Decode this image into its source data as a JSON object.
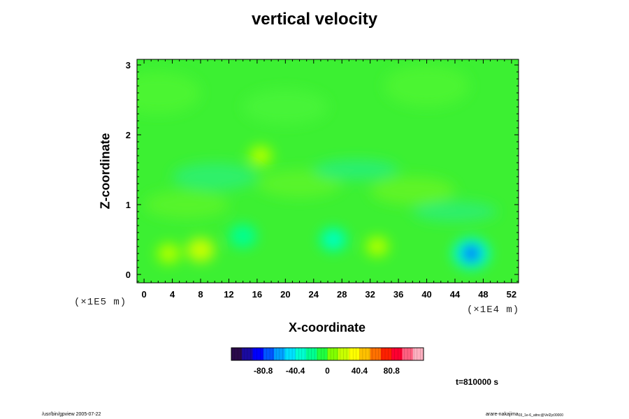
{
  "chart_data": {
    "type": "heatmap",
    "title": "vertical velocity",
    "xlabel": "X-coordinate",
    "ylabel": "Z-coordinate",
    "x_scale_note": "(×1E4 m)",
    "z_scale_note": "(×1E5 m)",
    "x_ticks": [
      "0",
      "4",
      "8",
      "12",
      "16",
      "20",
      "24",
      "28",
      "32",
      "36",
      "40",
      "44",
      "48",
      "52"
    ],
    "z_ticks": [
      "0",
      "1",
      "2",
      "3"
    ],
    "xlim": [
      -1,
      53
    ],
    "zlim": [
      -0.12,
      3.08
    ],
    "colorbar": {
      "ticks": [
        "-80.8",
        "-40.4",
        "0",
        "40.4",
        "80.8"
      ],
      "tick_values": [
        -80.8,
        -40.4,
        0,
        40.4,
        80.8
      ],
      "range": [
        -121,
        121
      ],
      "colors": [
        "#2a0a4a",
        "#1a0aa0",
        "#0000ff",
        "#0055ff",
        "#00a0ff",
        "#00e0ff",
        "#00ffd0",
        "#00ff90",
        "#20ff40",
        "#80ff00",
        "#c8ff00",
        "#ffff00",
        "#ffc000",
        "#ff7000",
        "#ff2000",
        "#ff0030",
        "#ff6080",
        "#ffb0c0"
      ]
    },
    "field_features": [
      {
        "x": 46.3,
        "z": 0.3,
        "value": -70
      },
      {
        "x": 26.8,
        "z": 0.5,
        "value": -30
      },
      {
        "x": 14.0,
        "z": 0.55,
        "value": -25
      },
      {
        "x": 8.0,
        "z": 0.35,
        "value": 25
      },
      {
        "x": 3.5,
        "z": 0.3,
        "value": 18
      },
      {
        "x": 33.0,
        "z": 0.4,
        "value": 15
      },
      {
        "x": 16.5,
        "z": 1.7,
        "value": 15
      }
    ],
    "time_label": "t=810000 s",
    "grid": false
  },
  "footer": {
    "left": "/usr/bin/gpview 2005-07-22",
    "right_main": "arare-nakajima",
    "right_sub": "03_1e-6_attnc@Vel2jc00000"
  }
}
